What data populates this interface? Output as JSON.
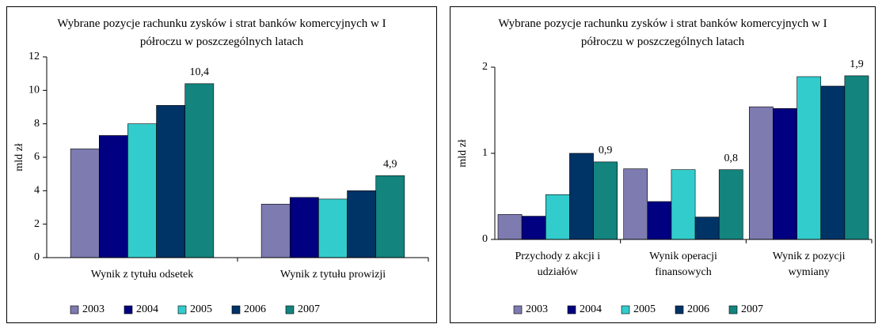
{
  "chart_data": [
    {
      "type": "bar",
      "title": "Wybrane pozycje rachunku zysków i strat banków komercyjnych w I półroczu w poszczególnych latach",
      "y_label": "mld zł",
      "categories": [
        "Wynik z tytułu odsetek",
        "Wynik z tytułu prowizji"
      ],
      "series": [
        {
          "name": "2003",
          "color": "#7d7bb0",
          "values": [
            6.5,
            3.2
          ]
        },
        {
          "name": "2004",
          "color": "#000080",
          "values": [
            7.3,
            3.6
          ]
        },
        {
          "name": "2005",
          "color": "#33cccc",
          "values": [
            8.0,
            3.5
          ]
        },
        {
          "name": "2006",
          "color": "#003366",
          "values": [
            9.1,
            4.0
          ]
        },
        {
          "name": "2007",
          "color": "#13847e",
          "values": [
            10.4,
            4.9
          ],
          "value_labels": [
            "10,4",
            "4,9"
          ]
        }
      ],
      "ylim": [
        0,
        12
      ],
      "yticks": [
        0,
        2,
        4,
        6,
        8,
        10,
        12
      ],
      "legend": "bottom"
    },
    {
      "type": "bar",
      "title": "Wybrane pozycje rachunku zysków i strat banków komercyjnych w I półroczu w poszczególnych latach",
      "y_label": "mld zł",
      "categories": [
        "Przychody z akcji i udziałów",
        "Wynik operacji finansowych",
        "Wynik z pozycji wymiany"
      ],
      "series": [
        {
          "name": "2003",
          "color": "#7d7bb0",
          "values": [
            0.29,
            0.82,
            1.54
          ]
        },
        {
          "name": "2004",
          "color": "#000080",
          "values": [
            0.27,
            0.44,
            1.52
          ]
        },
        {
          "name": "2005",
          "color": "#33cccc",
          "values": [
            0.52,
            0.81,
            1.89
          ]
        },
        {
          "name": "2006",
          "color": "#003366",
          "values": [
            1.0,
            0.26,
            1.78
          ]
        },
        {
          "name": "2007",
          "color": "#13847e",
          "values": [
            0.9,
            0.81,
            1.9
          ],
          "value_labels": [
            "0,9",
            "0,8",
            "1,9"
          ]
        }
      ],
      "ylim": [
        0,
        2
      ],
      "yticks": [
        0,
        1,
        2
      ],
      "legend": "bottom"
    }
  ]
}
